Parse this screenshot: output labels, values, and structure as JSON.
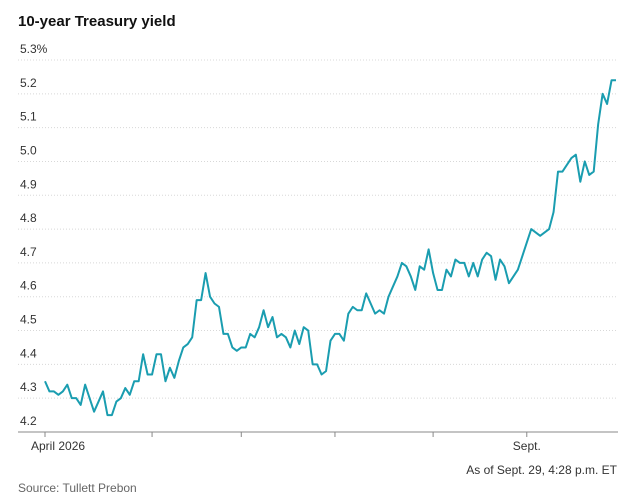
{
  "chart_data": {
    "type": "line",
    "title": "10-year Treasury yield",
    "note": "As of Sept. 29, 4:28 p.m. ET",
    "source": "Source: Tullett Prebon",
    "categories": [
      "April 2026",
      null,
      null,
      null,
      null,
      null,
      null,
      null,
      null,
      null,
      null,
      null,
      null,
      null,
      null,
      null,
      null,
      null,
      null,
      null,
      null,
      null,
      null,
      null,
      null,
      null,
      null,
      null,
      null,
      null,
      null,
      null,
      null,
      null,
      null,
      null,
      null,
      null,
      null,
      null,
      null,
      null,
      null,
      null,
      null,
      null,
      null,
      null,
      null,
      null,
      null,
      null,
      null,
      null,
      null,
      null,
      null,
      null,
      null,
      null,
      null,
      null,
      null,
      null,
      null,
      null,
      null,
      null,
      null,
      null,
      null,
      null,
      null,
      null,
      null,
      null,
      null,
      null,
      null,
      null,
      null,
      null,
      null,
      null,
      null,
      null,
      null,
      null,
      null,
      null,
      null,
      null,
      null,
      null,
      null,
      null,
      null,
      null,
      null,
      null,
      null,
      null,
      null,
      null,
      null,
      null,
      null,
      null,
      "Sept.",
      null,
      null,
      null,
      null,
      null,
      null,
      null,
      null,
      null,
      null,
      null,
      null,
      null,
      null,
      null,
      null,
      null,
      null,
      null,
      null
    ],
    "xticks": [
      0,
      24,
      44,
      65,
      87,
      108
    ],
    "series": [
      {
        "name": "10-year Treasury yield",
        "color": "#1a9db0",
        "values": [
          4.35,
          4.32,
          4.32,
          4.31,
          4.32,
          4.34,
          4.3,
          4.3,
          4.28,
          4.34,
          4.3,
          4.26,
          4.29,
          4.32,
          4.25,
          4.25,
          4.29,
          4.3,
          4.33,
          4.31,
          4.35,
          4.35,
          4.43,
          4.37,
          4.37,
          4.43,
          4.43,
          4.35,
          4.39,
          4.36,
          4.41,
          4.45,
          4.46,
          4.48,
          4.59,
          4.59,
          4.67,
          4.6,
          4.58,
          4.57,
          4.49,
          4.49,
          4.45,
          4.44,
          4.45,
          4.45,
          4.49,
          4.48,
          4.51,
          4.56,
          4.51,
          4.54,
          4.48,
          4.49,
          4.48,
          4.45,
          4.5,
          4.46,
          4.51,
          4.5,
          4.4,
          4.4,
          4.37,
          4.38,
          4.47,
          4.49,
          4.49,
          4.47,
          4.55,
          4.57,
          4.56,
          4.56,
          4.61,
          4.58,
          4.55,
          4.56,
          4.55,
          4.6,
          4.63,
          4.66,
          4.7,
          4.69,
          4.66,
          4.62,
          4.69,
          4.68,
          4.74,
          4.67,
          4.62,
          4.62,
          4.68,
          4.66,
          4.71,
          4.7,
          4.7,
          4.66,
          4.7,
          4.66,
          4.71,
          4.73,
          4.72,
          4.65,
          4.71,
          4.69,
          4.64,
          4.66,
          4.68,
          4.72,
          4.76,
          4.8,
          4.79,
          4.78,
          4.79,
          4.8,
          4.85,
          4.97,
          4.97,
          4.99,
          5.01,
          5.02,
          4.94,
          5.0,
          4.96,
          4.97,
          5.11,
          5.2,
          5.17,
          5.24,
          5.24
        ]
      }
    ],
    "ylim": [
      4.2,
      5.3
    ],
    "yticks": [
      4.2,
      4.3,
      4.4,
      4.5,
      4.6,
      4.7,
      4.8,
      4.9,
      {
        "value": 5.0,
        "label": "5.0"
      },
      5.1,
      5.2,
      {
        "value": 5.3,
        "label": "5.3%"
      }
    ],
    "grid": true
  }
}
